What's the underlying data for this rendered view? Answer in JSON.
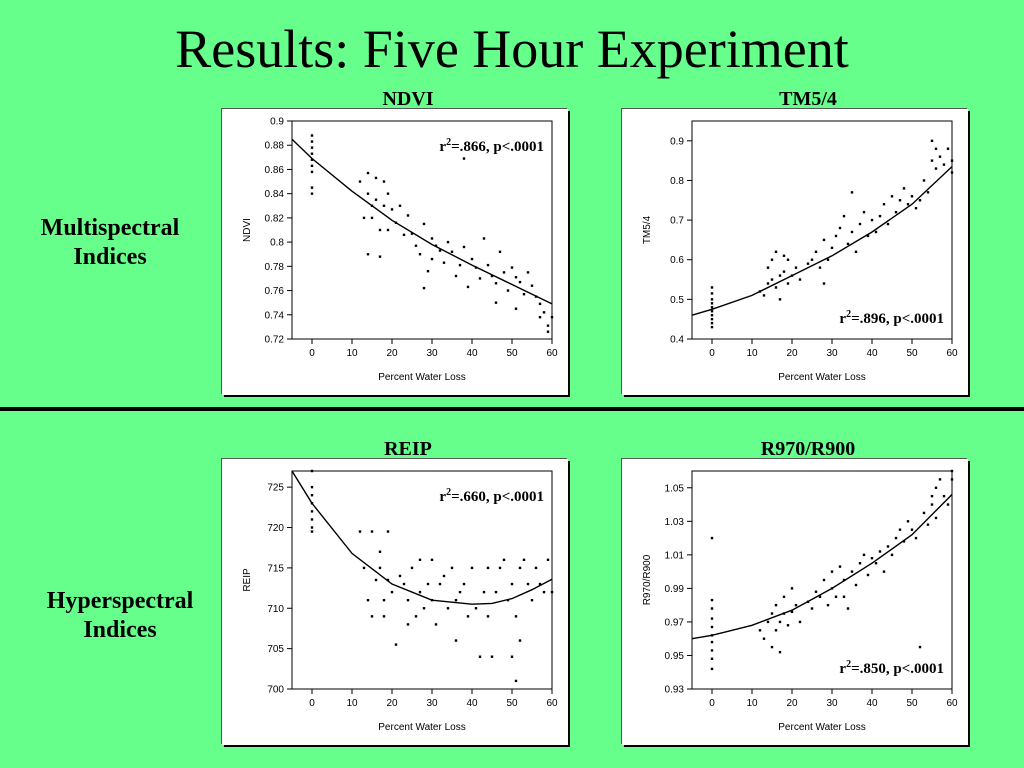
{
  "slide": {
    "title": "Results: Five Hour Experiment",
    "rows": [
      "Multispectral Indices",
      "Hyperspectral Indices"
    ]
  },
  "chart_data": [
    {
      "type": "scatter",
      "title": "NDVI",
      "ylabel": "NDVI",
      "xlabel": "Percent Water Loss",
      "xlim": [
        -5,
        60
      ],
      "ylim": [
        0.72,
        0.9
      ],
      "xticks": [
        "0",
        "10",
        "20",
        "30",
        "40",
        "50",
        "60"
      ],
      "yticks": [
        "0.72",
        "0.74",
        "0.76",
        "0.78",
        "0.8",
        "0.82",
        "0.84",
        "0.86",
        "0.88",
        "0.9"
      ],
      "stat": {
        "r2": ".866",
        "p": "<.0001"
      },
      "trend": {
        "x": [
          -5,
          0,
          10,
          20,
          30,
          40,
          50,
          60
        ],
        "y": [
          0.885,
          0.869,
          0.842,
          0.818,
          0.798,
          0.781,
          0.765,
          0.749
        ]
      },
      "points": [
        [
          0,
          0.888
        ],
        [
          0,
          0.883
        ],
        [
          0,
          0.878
        ],
        [
          0,
          0.873
        ],
        [
          0,
          0.868
        ],
        [
          0,
          0.863
        ],
        [
          0,
          0.858
        ],
        [
          0,
          0.845
        ],
        [
          0,
          0.84
        ],
        [
          12,
          0.85
        ],
        [
          13,
          0.82
        ],
        [
          14,
          0.857
        ],
        [
          14,
          0.84
        ],
        [
          15,
          0.83
        ],
        [
          15,
          0.82
        ],
        [
          16,
          0.853
        ],
        [
          16,
          0.835
        ],
        [
          17,
          0.81
        ],
        [
          17,
          0.788
        ],
        [
          18,
          0.85
        ],
        [
          18,
          0.83
        ],
        [
          19,
          0.81
        ],
        [
          19,
          0.84
        ],
        [
          20,
          0.827
        ],
        [
          21,
          0.816
        ],
        [
          22,
          0.83
        ],
        [
          23,
          0.806
        ],
        [
          24,
          0.822
        ],
        [
          25,
          0.807
        ],
        [
          26,
          0.797
        ],
        [
          27,
          0.79
        ],
        [
          28,
          0.815
        ],
        [
          29,
          0.776
        ],
        [
          30,
          0.803
        ],
        [
          30,
          0.786
        ],
        [
          31,
          0.797
        ],
        [
          32,
          0.793
        ],
        [
          33,
          0.783
        ],
        [
          34,
          0.8
        ],
        [
          35,
          0.792
        ],
        [
          36,
          0.772
        ],
        [
          37,
          0.781
        ],
        [
          38,
          0.796
        ],
        [
          39,
          0.763
        ],
        [
          40,
          0.786
        ],
        [
          41,
          0.779
        ],
        [
          42,
          0.77
        ],
        [
          43,
          0.803
        ],
        [
          44,
          0.781
        ],
        [
          45,
          0.772
        ],
        [
          46,
          0.766
        ],
        [
          47,
          0.792
        ],
        [
          48,
          0.775
        ],
        [
          49,
          0.76
        ],
        [
          50,
          0.779
        ],
        [
          51,
          0.771
        ],
        [
          51,
          0.745
        ],
        [
          52,
          0.767
        ],
        [
          53,
          0.757
        ],
        [
          54,
          0.775
        ],
        [
          55,
          0.764
        ],
        [
          56,
          0.755
        ],
        [
          57,
          0.738
        ],
        [
          57,
          0.749
        ],
        [
          58,
          0.742
        ],
        [
          59,
          0.731
        ],
        [
          59,
          0.726
        ],
        [
          60,
          0.738
        ],
        [
          14,
          0.79
        ],
        [
          28,
          0.762
        ],
        [
          38,
          0.869
        ],
        [
          46,
          0.75
        ]
      ]
    },
    {
      "type": "scatter",
      "title": "TM5/4",
      "ylabel": "TM5/4",
      "xlabel": "Percent Water Loss",
      "xlim": [
        -5,
        60
      ],
      "ylim": [
        0.4,
        0.95
      ],
      "xticks": [
        "0",
        "10",
        "20",
        "30",
        "40",
        "50",
        "60"
      ],
      "yticks": [
        "0.4",
        "0.5",
        "0.6",
        "0.7",
        "0.8",
        "0.9"
      ],
      "stat": {
        "r2": ".896",
        "p": "<.0001"
      },
      "trend": {
        "x": [
          -5,
          0,
          10,
          20,
          30,
          40,
          50,
          60
        ],
        "y": [
          0.46,
          0.475,
          0.51,
          0.56,
          0.61,
          0.67,
          0.74,
          0.835
        ]
      },
      "points": [
        [
          0,
          0.53
        ],
        [
          0,
          0.515
        ],
        [
          0,
          0.5
        ],
        [
          0,
          0.49
        ],
        [
          0,
          0.48
        ],
        [
          0,
          0.47
        ],
        [
          0,
          0.46
        ],
        [
          0,
          0.45
        ],
        [
          0,
          0.44
        ],
        [
          0,
          0.43
        ],
        [
          12,
          0.52
        ],
        [
          13,
          0.51
        ],
        [
          14,
          0.54
        ],
        [
          14,
          0.58
        ],
        [
          15,
          0.55
        ],
        [
          15,
          0.6
        ],
        [
          16,
          0.53
        ],
        [
          16,
          0.62
        ],
        [
          17,
          0.56
        ],
        [
          17,
          0.5
        ],
        [
          18,
          0.57
        ],
        [
          18,
          0.61
        ],
        [
          19,
          0.54
        ],
        [
          19,
          0.6
        ],
        [
          20,
          0.56
        ],
        [
          21,
          0.58
        ],
        [
          22,
          0.55
        ],
        [
          24,
          0.59
        ],
        [
          25,
          0.6
        ],
        [
          26,
          0.62
        ],
        [
          27,
          0.58
        ],
        [
          28,
          0.65
        ],
        [
          29,
          0.6
        ],
        [
          30,
          0.63
        ],
        [
          31,
          0.66
        ],
        [
          32,
          0.68
        ],
        [
          33,
          0.71
        ],
        [
          34,
          0.64
        ],
        [
          35,
          0.67
        ],
        [
          36,
          0.62
        ],
        [
          37,
          0.69
        ],
        [
          38,
          0.72
        ],
        [
          39,
          0.66
        ],
        [
          40,
          0.7
        ],
        [
          41,
          0.67
        ],
        [
          42,
          0.71
        ],
        [
          43,
          0.74
        ],
        [
          44,
          0.69
        ],
        [
          45,
          0.76
        ],
        [
          46,
          0.72
        ],
        [
          47,
          0.75
        ],
        [
          48,
          0.78
        ],
        [
          49,
          0.74
        ],
        [
          50,
          0.76
        ],
        [
          51,
          0.73
        ],
        [
          52,
          0.75
        ],
        [
          53,
          0.8
        ],
        [
          54,
          0.77
        ],
        [
          55,
          0.85
        ],
        [
          55,
          0.9
        ],
        [
          56,
          0.83
        ],
        [
          56,
          0.88
        ],
        [
          57,
          0.86
        ],
        [
          58,
          0.84
        ],
        [
          59,
          0.88
        ],
        [
          60,
          0.85
        ],
        [
          60,
          0.82
        ],
        [
          35,
          0.77
        ],
        [
          28,
          0.54
        ]
      ]
    },
    {
      "type": "scatter",
      "title": "REIP",
      "ylabel": "REIP",
      "xlabel": "Percent Water Loss",
      "xlim": [
        -5,
        60
      ],
      "ylim": [
        700,
        727
      ],
      "xticks": [
        "0",
        "10",
        "20",
        "30",
        "40",
        "50",
        "60"
      ],
      "yticks": [
        "700",
        "705",
        "710",
        "715",
        "720",
        "725"
      ],
      "stat": {
        "r2": ".660",
        "p": "<.0001"
      },
      "trend": {
        "x": [
          -5,
          0,
          10,
          20,
          30,
          40,
          45,
          50,
          55,
          60
        ],
        "y": [
          727,
          723,
          716.8,
          713,
          711,
          710.5,
          710.6,
          711.2,
          712.3,
          713.6
        ]
      },
      "points": [
        [
          0,
          727
        ],
        [
          0,
          725
        ],
        [
          0,
          724
        ],
        [
          0,
          723
        ],
        [
          0,
          722
        ],
        [
          0,
          721
        ],
        [
          0,
          720
        ],
        [
          0,
          719.5
        ],
        [
          12,
          719.5
        ],
        [
          13,
          715
        ],
        [
          14,
          711
        ],
        [
          15,
          719.5
        ],
        [
          15,
          709
        ],
        [
          16,
          713.5
        ],
        [
          17,
          717
        ],
        [
          17,
          715
        ],
        [
          18,
          711
        ],
        [
          18,
          709
        ],
        [
          19,
          719.5
        ],
        [
          19,
          713.5
        ],
        [
          20,
          712
        ],
        [
          21,
          705.5
        ],
        [
          22,
          714
        ],
        [
          23,
          713
        ],
        [
          24,
          711
        ],
        [
          25,
          715
        ],
        [
          26,
          709
        ],
        [
          27,
          712
        ],
        [
          27,
          716
        ],
        [
          28,
          710
        ],
        [
          29,
          713
        ],
        [
          30,
          711
        ],
        [
          30,
          716
        ],
        [
          31,
          708
        ],
        [
          32,
          713
        ],
        [
          33,
          714
        ],
        [
          34,
          710
        ],
        [
          35,
          715
        ],
        [
          36,
          711
        ],
        [
          37,
          712
        ],
        [
          38,
          713
        ],
        [
          39,
          709
        ],
        [
          40,
          715
        ],
        [
          41,
          710
        ],
        [
          42,
          704
        ],
        [
          43,
          712
        ],
        [
          44,
          715
        ],
        [
          45,
          704
        ],
        [
          46,
          712
        ],
        [
          47,
          715
        ],
        [
          48,
          716
        ],
        [
          49,
          711
        ],
        [
          50,
          713
        ],
        [
          50,
          704
        ],
        [
          51,
          701
        ],
        [
          51,
          709
        ],
        [
          52,
          715
        ],
        [
          52,
          706
        ],
        [
          53,
          716
        ],
        [
          54,
          713
        ],
        [
          55,
          711
        ],
        [
          56,
          715
        ],
        [
          57,
          713
        ],
        [
          58,
          712
        ],
        [
          59,
          716
        ],
        [
          60,
          712
        ],
        [
          24,
          708
        ],
        [
          36,
          706
        ],
        [
          44,
          709
        ]
      ]
    },
    {
      "type": "scatter",
      "title": "R970/R900",
      "ylabel": "R970/R900",
      "xlabel": "Percent Water Loss",
      "xlim": [
        -5,
        60
      ],
      "ylim": [
        0.93,
        1.06
      ],
      "xticks": [
        "0",
        "10",
        "20",
        "30",
        "40",
        "50",
        "60"
      ],
      "yticks": [
        "0.93",
        "0.95",
        "0.97",
        "0.99",
        "1.01",
        "1.03",
        "1.05"
      ],
      "stat": {
        "r2": ".850",
        "p": "<.0001"
      },
      "trend": {
        "x": [
          -5,
          0,
          10,
          20,
          30,
          40,
          50,
          60
        ],
        "y": [
          0.96,
          0.962,
          0.968,
          0.977,
          0.99,
          1.005,
          1.022,
          1.046
        ]
      },
      "points": [
        [
          0,
          1.02
        ],
        [
          0,
          0.983
        ],
        [
          0,
          0.978
        ],
        [
          0,
          0.972
        ],
        [
          0,
          0.967
        ],
        [
          0,
          0.962
        ],
        [
          0,
          0.958
        ],
        [
          0,
          0.953
        ],
        [
          0,
          0.948
        ],
        [
          0,
          0.942
        ],
        [
          12,
          0.965
        ],
        [
          13,
          0.96
        ],
        [
          14,
          0.97
        ],
        [
          15,
          0.975
        ],
        [
          15,
          0.955
        ],
        [
          16,
          0.98
        ],
        [
          16,
          0.965
        ],
        [
          17,
          0.97
        ],
        [
          17,
          0.952
        ],
        [
          18,
          0.975
        ],
        [
          18,
          0.985
        ],
        [
          19,
          0.968
        ],
        [
          20,
          0.976
        ],
        [
          21,
          0.98
        ],
        [
          22,
          0.97
        ],
        [
          24,
          0.982
        ],
        [
          25,
          0.978
        ],
        [
          26,
          0.988
        ],
        [
          27,
          0.985
        ],
        [
          28,
          0.995
        ],
        [
          29,
          0.98
        ],
        [
          30,
          0.99
        ],
        [
          30,
          1.0
        ],
        [
          31,
          0.985
        ],
        [
          32,
          1.003
        ],
        [
          33,
          0.995
        ],
        [
          34,
          0.978
        ],
        [
          35,
          1.0
        ],
        [
          36,
          0.992
        ],
        [
          37,
          1.005
        ],
        [
          38,
          1.01
        ],
        [
          39,
          0.998
        ],
        [
          40,
          1.008
        ],
        [
          41,
          1.005
        ],
        [
          42,
          1.012
        ],
        [
          43,
          1.0
        ],
        [
          44,
          1.015
        ],
        [
          45,
          1.01
        ],
        [
          46,
          1.02
        ],
        [
          47,
          1.025
        ],
        [
          48,
          1.018
        ],
        [
          49,
          1.03
        ],
        [
          50,
          1.025
        ],
        [
          51,
          1.02
        ],
        [
          52,
          0.955
        ],
        [
          53,
          1.035
        ],
        [
          54,
          1.028
        ],
        [
          55,
          1.045
        ],
        [
          55,
          1.04
        ],
        [
          56,
          1.05
        ],
        [
          57,
          1.055
        ],
        [
          58,
          1.045
        ],
        [
          59,
          1.04
        ],
        [
          60,
          1.055
        ],
        [
          60,
          1.06
        ],
        [
          56,
          1.032
        ],
        [
          33,
          0.985
        ],
        [
          20,
          0.99
        ]
      ]
    }
  ]
}
